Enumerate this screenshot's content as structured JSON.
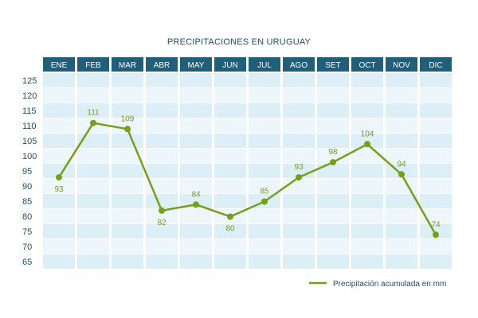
{
  "chart_data": {
    "type": "line",
    "title": "PRECIPITACIONES EN  URUGUAY",
    "categories": [
      "ENE",
      "FEB",
      "MAR",
      "ABR",
      "MAY",
      "JUN",
      "JUL",
      "AGO",
      "SET",
      "OCT",
      "NOV",
      "DIC"
    ],
    "series": [
      {
        "name": "Precipitación acumulada en mm",
        "values": [
          93,
          111,
          109,
          82,
          84,
          80,
          85,
          93,
          98,
          104,
          94,
          74
        ],
        "color": "#76a018"
      }
    ],
    "y_axis": {
      "ticks": [
        125,
        120,
        115,
        110,
        105,
        100,
        95,
        90,
        85,
        80,
        75,
        70,
        65
      ]
    },
    "ylim": [
      62,
      126
    ],
    "grid": true,
    "legend": "bottom-right",
    "colors": {
      "header": "#1f5f7a",
      "band_dark": "#dceef6",
      "band_light": "#edf6fa",
      "line": "#76a018",
      "tick_text": "#1d4f6e"
    }
  }
}
